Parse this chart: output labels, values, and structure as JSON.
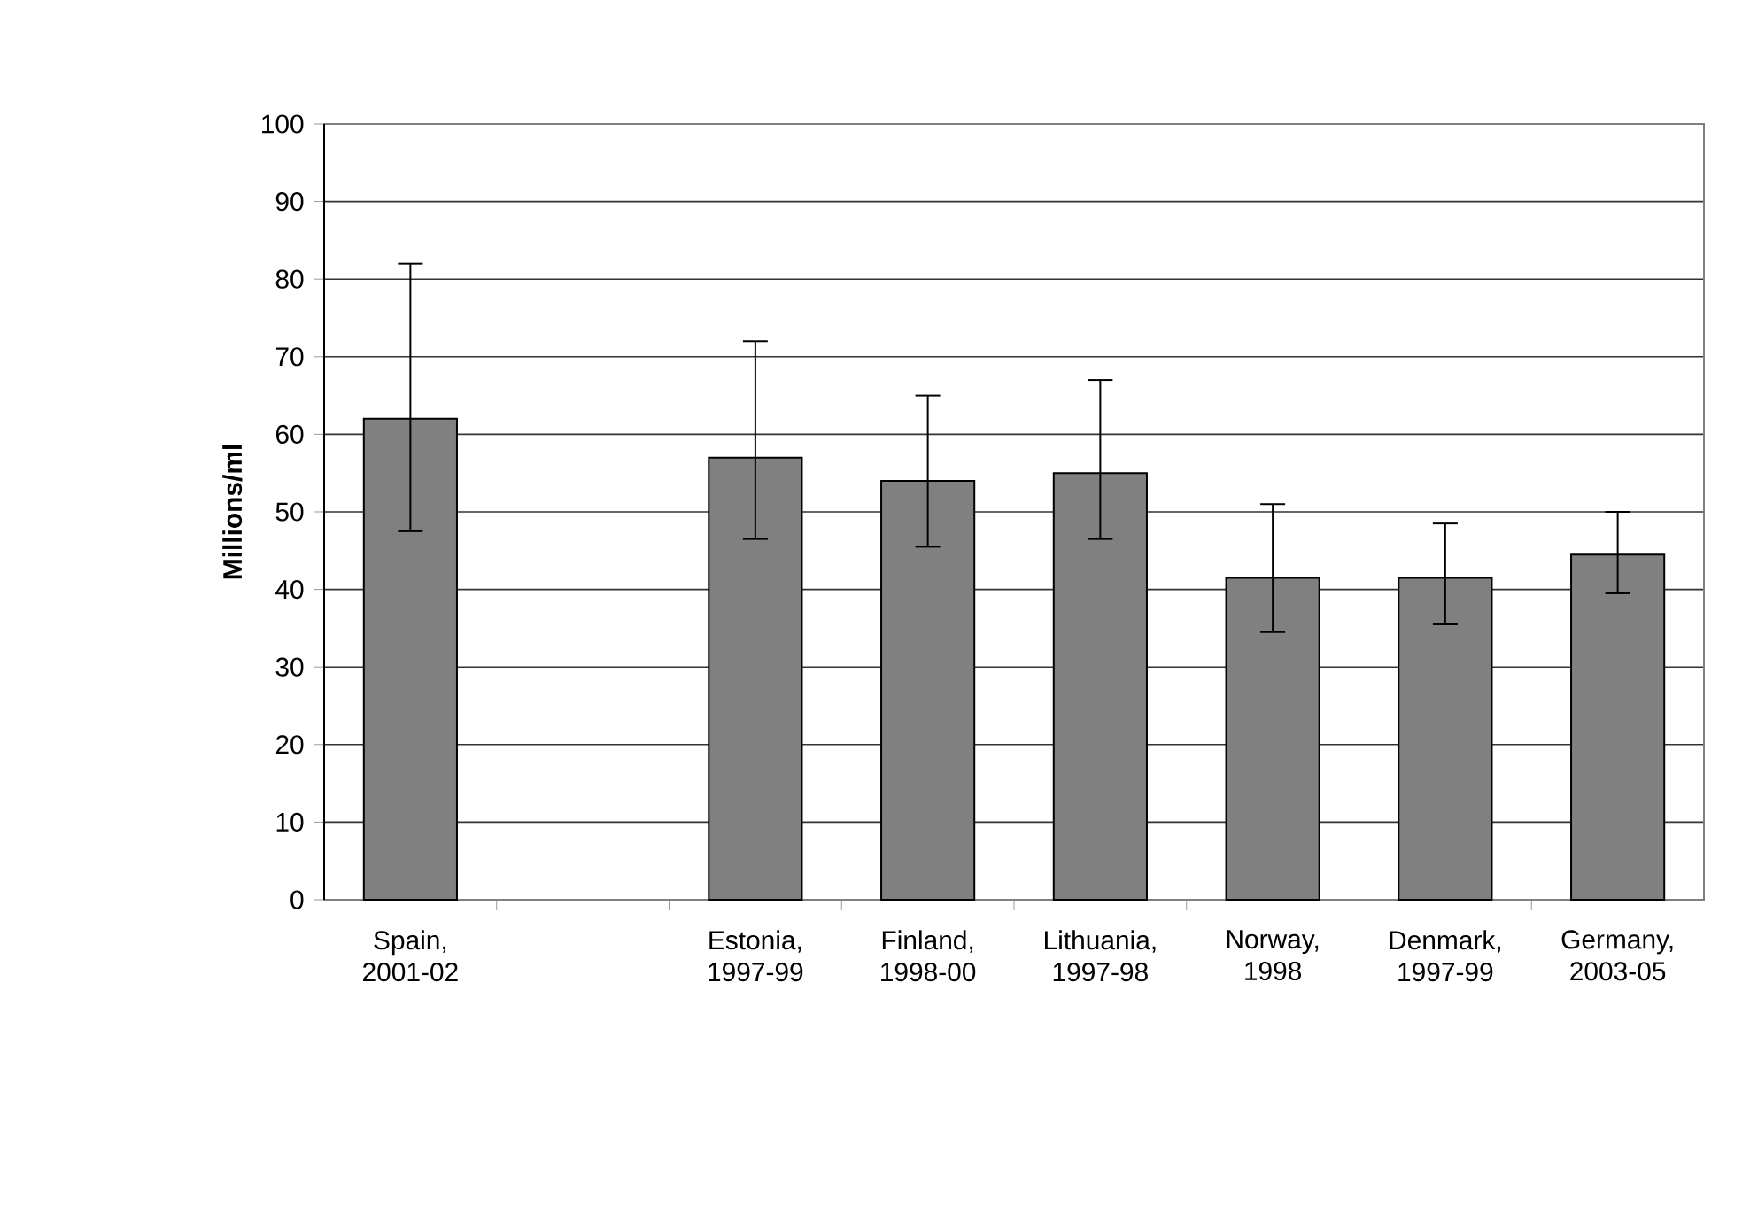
{
  "chart_data": {
    "type": "bar",
    "ylabel": "Millions/ml",
    "categories": [
      "Spain, 2001-02",
      null,
      "Estonia, 1997-99",
      "Finland, 1998-00",
      "Lithuania, 1997-98",
      "Norway, 1998",
      "Denmark, 1997-99",
      "Germany, 2003-05"
    ],
    "values": [
      62,
      null,
      57,
      54,
      55,
      41.5,
      41.5,
      44.5
    ],
    "errors": [
      [
        47.5,
        82
      ],
      null,
      [
        46.5,
        72
      ],
      [
        45.5,
        65
      ],
      [
        46.5,
        67
      ],
      [
        34.5,
        51
      ],
      [
        35.5,
        48.5
      ],
      [
        39.5,
        50
      ]
    ],
    "color": "#808080",
    "ylim": [
      0,
      100
    ],
    "yticks": [
      0,
      10,
      20,
      30,
      40,
      50,
      60,
      70,
      80,
      90,
      100
    ],
    "grid": "y"
  }
}
